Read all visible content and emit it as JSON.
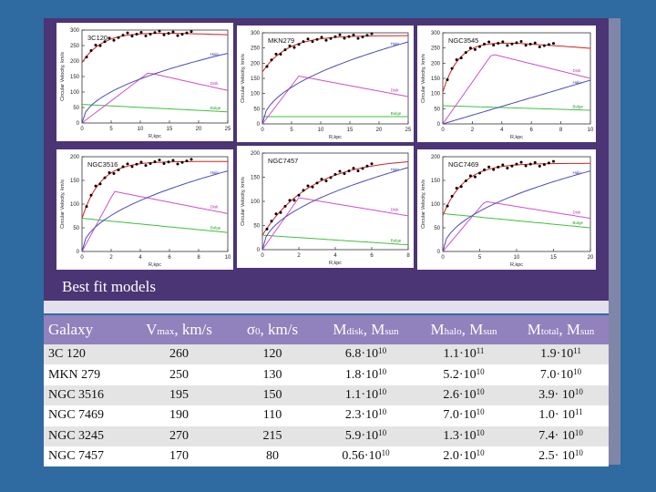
{
  "slide": {
    "caption": "Best fit models",
    "colors": {
      "background": "#2f6aa0",
      "panel": "#4b3574",
      "header": "#9181bd"
    }
  },
  "plots": [
    {
      "name": "3C120",
      "xlabel": "R,kpc",
      "ylabel": "Circular Velocity, km/s",
      "xticks": [
        "0",
        "5",
        "10",
        "15",
        "20",
        "25"
      ],
      "yticks": [
        "0",
        "50",
        "100",
        "150",
        "200",
        "250",
        "300"
      ],
      "labels": {
        "halo": "Halo",
        "disk": "Disk",
        "bulge": "Bulge"
      }
    },
    {
      "name": "MKN279",
      "xlabel": "R,kpc",
      "ylabel": "Circular Velocity, km/s",
      "xticks": [
        "0",
        "5",
        "10",
        "15",
        "20",
        "25"
      ],
      "yticks": [
        "0",
        "50",
        "100",
        "150",
        "200",
        "250",
        "300"
      ],
      "labels": {
        "halo": "Halo",
        "disk": "Disk",
        "bulge": "Bulge"
      }
    },
    {
      "name": "NGC3545",
      "xlabel": "R,kpc",
      "ylabel": "Circular Velocity, km/s",
      "xticks": [
        "0",
        "2",
        "4",
        "6",
        "8",
        "10"
      ],
      "yticks": [
        "0",
        "50",
        "100",
        "150",
        "200",
        "250",
        "300"
      ],
      "labels": {
        "halo": "Halo",
        "disk": "Disk",
        "bulge": "Bulge"
      }
    },
    {
      "name": "NGC3516",
      "xlabel": "R,kpc",
      "ylabel": "Circular Velocity, km/s",
      "xticks": [
        "0",
        "2",
        "4",
        "6",
        "8",
        "10"
      ],
      "yticks": [
        "0",
        "50",
        "100",
        "150",
        "200"
      ],
      "labels": {
        "halo": "Halo",
        "disk": "Disk",
        "bulge": "Bulge"
      }
    },
    {
      "name": "NGC7457",
      "xlabel": "R,kpc",
      "ylabel": "Circular Velocity, km/s",
      "xticks": [
        "0",
        "2",
        "4",
        "6",
        "8"
      ],
      "yticks": [
        "0",
        "50",
        "100",
        "150",
        "200"
      ],
      "labels": {
        "halo": "Halo",
        "disk": "Disk",
        "bulge": "Bulge"
      }
    },
    {
      "name": "NGC7469",
      "xlabel": "R,kpc",
      "ylabel": "Circular Velocity, km/s",
      "xticks": [
        "0",
        "5",
        "10",
        "15",
        "20"
      ],
      "yticks": [
        "0",
        "50",
        "100",
        "150",
        "200"
      ],
      "labels": {
        "halo": "Halo",
        "disk": "Disk",
        "bulge": "Bulge"
      }
    }
  ],
  "table": {
    "headers": [
      {
        "main": "Galaxy"
      },
      {
        "main": "V",
        "sub": "max",
        "tail": ", km/s"
      },
      {
        "main": "σ",
        "sub": "0",
        "tail": ", km/s"
      },
      {
        "main": "M",
        "sub": "disk",
        "tail": ", M",
        "sub2": "sun"
      },
      {
        "main": "M",
        "sub": "halo",
        "tail": ", M",
        "sub2": "sun"
      },
      {
        "main": "M",
        "sub": "total",
        "tail": ", M",
        "sub2": "sun"
      }
    ],
    "rows": [
      {
        "galaxy": "3C 120",
        "vmax": "260",
        "sigma": "120",
        "mdisk": {
          "m": "6.8·10",
          "e": "10"
        },
        "mhalo": {
          "m": "1.1·10",
          "e": "11"
        },
        "mtotal": {
          "m": "1.9·10",
          "e": "11"
        }
      },
      {
        "galaxy": "MKN 279",
        "vmax": "250",
        "sigma": "130",
        "mdisk": {
          "m": "1.8·10",
          "e": "10"
        },
        "mhalo": {
          "m": "5.2·10",
          "e": "10"
        },
        "mtotal": {
          "m": "7.0·10",
          "e": "10"
        }
      },
      {
        "galaxy": "NGC 3516",
        "vmax": "195",
        "sigma": "150",
        "mdisk": {
          "m": "1.1·10",
          "e": "10"
        },
        "mhalo": {
          "m": "2.6·10",
          "e": "10"
        },
        "mtotal": {
          "m": "3.9· 10",
          "e": "10"
        }
      },
      {
        "galaxy": "NGC 7469",
        "vmax": "190",
        "sigma": "110",
        "mdisk": {
          "m": "2.3·10",
          "e": "10"
        },
        "mhalo": {
          "m": "7.0·10",
          "e": "10"
        },
        "mtotal": {
          "m": "1.0· 10",
          "e": "11"
        }
      },
      {
        "galaxy": "NGC 3245",
        "vmax": "270",
        "sigma": "215",
        "mdisk": {
          "m": "5.9·10",
          "e": "10"
        },
        "mhalo": {
          "m": "1.3·10",
          "e": "10"
        },
        "mtotal": {
          "m": "7.4· 10",
          "e": "10"
        }
      },
      {
        "galaxy": "NGC 7457",
        "vmax": "170",
        "sigma": "80",
        "mdisk": {
          "m": "0.56·10",
          "e": "10"
        },
        "mhalo": {
          "m": "2.0·10",
          "e": "10"
        },
        "mtotal": {
          "m": "2.5· 10",
          "e": "10"
        }
      }
    ]
  }
}
